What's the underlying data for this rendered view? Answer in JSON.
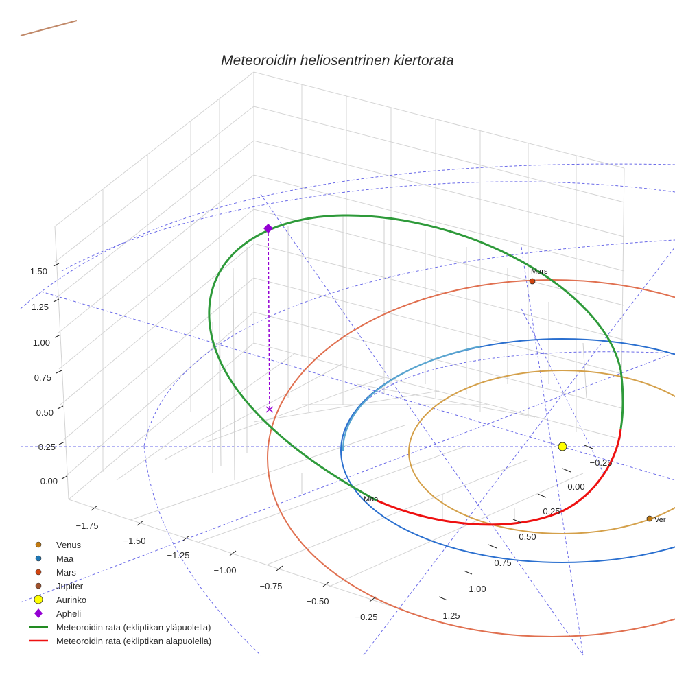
{
  "chart_data": {
    "type": "scatter3d",
    "title": "Meteoroidin heliosentrinen kiertorata",
    "x_ticks": [
      "−1.75",
      "−1.50",
      "−1.25",
      "−1.00",
      "−0.75",
      "−0.50",
      "−0.25"
    ],
    "y_ticks": [
      "1.25",
      "1.00",
      "0.75",
      "0.50",
      "0.25",
      "0.00",
      "−0.25"
    ],
    "z_ticks": [
      "1.50",
      "1.25",
      "1.00",
      "0.75",
      "0.50",
      "0.25",
      "0.00"
    ],
    "point_labels": {
      "mars": "Mars",
      "earth": "Maa",
      "venus": "Ver"
    },
    "legend": [
      {
        "label": "Venus",
        "marker": "circle",
        "color": "#c17a12"
      },
      {
        "label": "Maa",
        "marker": "circle",
        "color": "#1f77b4"
      },
      {
        "label": "Mars",
        "marker": "circle",
        "color": "#d1440f"
      },
      {
        "label": "Jupiter",
        "marker": "circle",
        "color": "#a0522d"
      },
      {
        "label": "Aurinko",
        "marker": "circle",
        "color": "#ffff00"
      },
      {
        "label": "Apheli",
        "marker": "diamond",
        "color": "#9400d3"
      },
      {
        "label": "Meteoroidin rata (ekliptikan yläpuolella)",
        "marker": "line",
        "color": "#228b22"
      },
      {
        "label": "Meteoroidin rata (ekliptikan alapuolella)",
        "marker": "line",
        "color": "#ee1111"
      }
    ],
    "colors": {
      "venus_orbit": "#d4a04a",
      "earth_orbit": "#2a6fcf",
      "mars_orbit": "#e07050",
      "projection": "#6a6ae8"
    }
  }
}
